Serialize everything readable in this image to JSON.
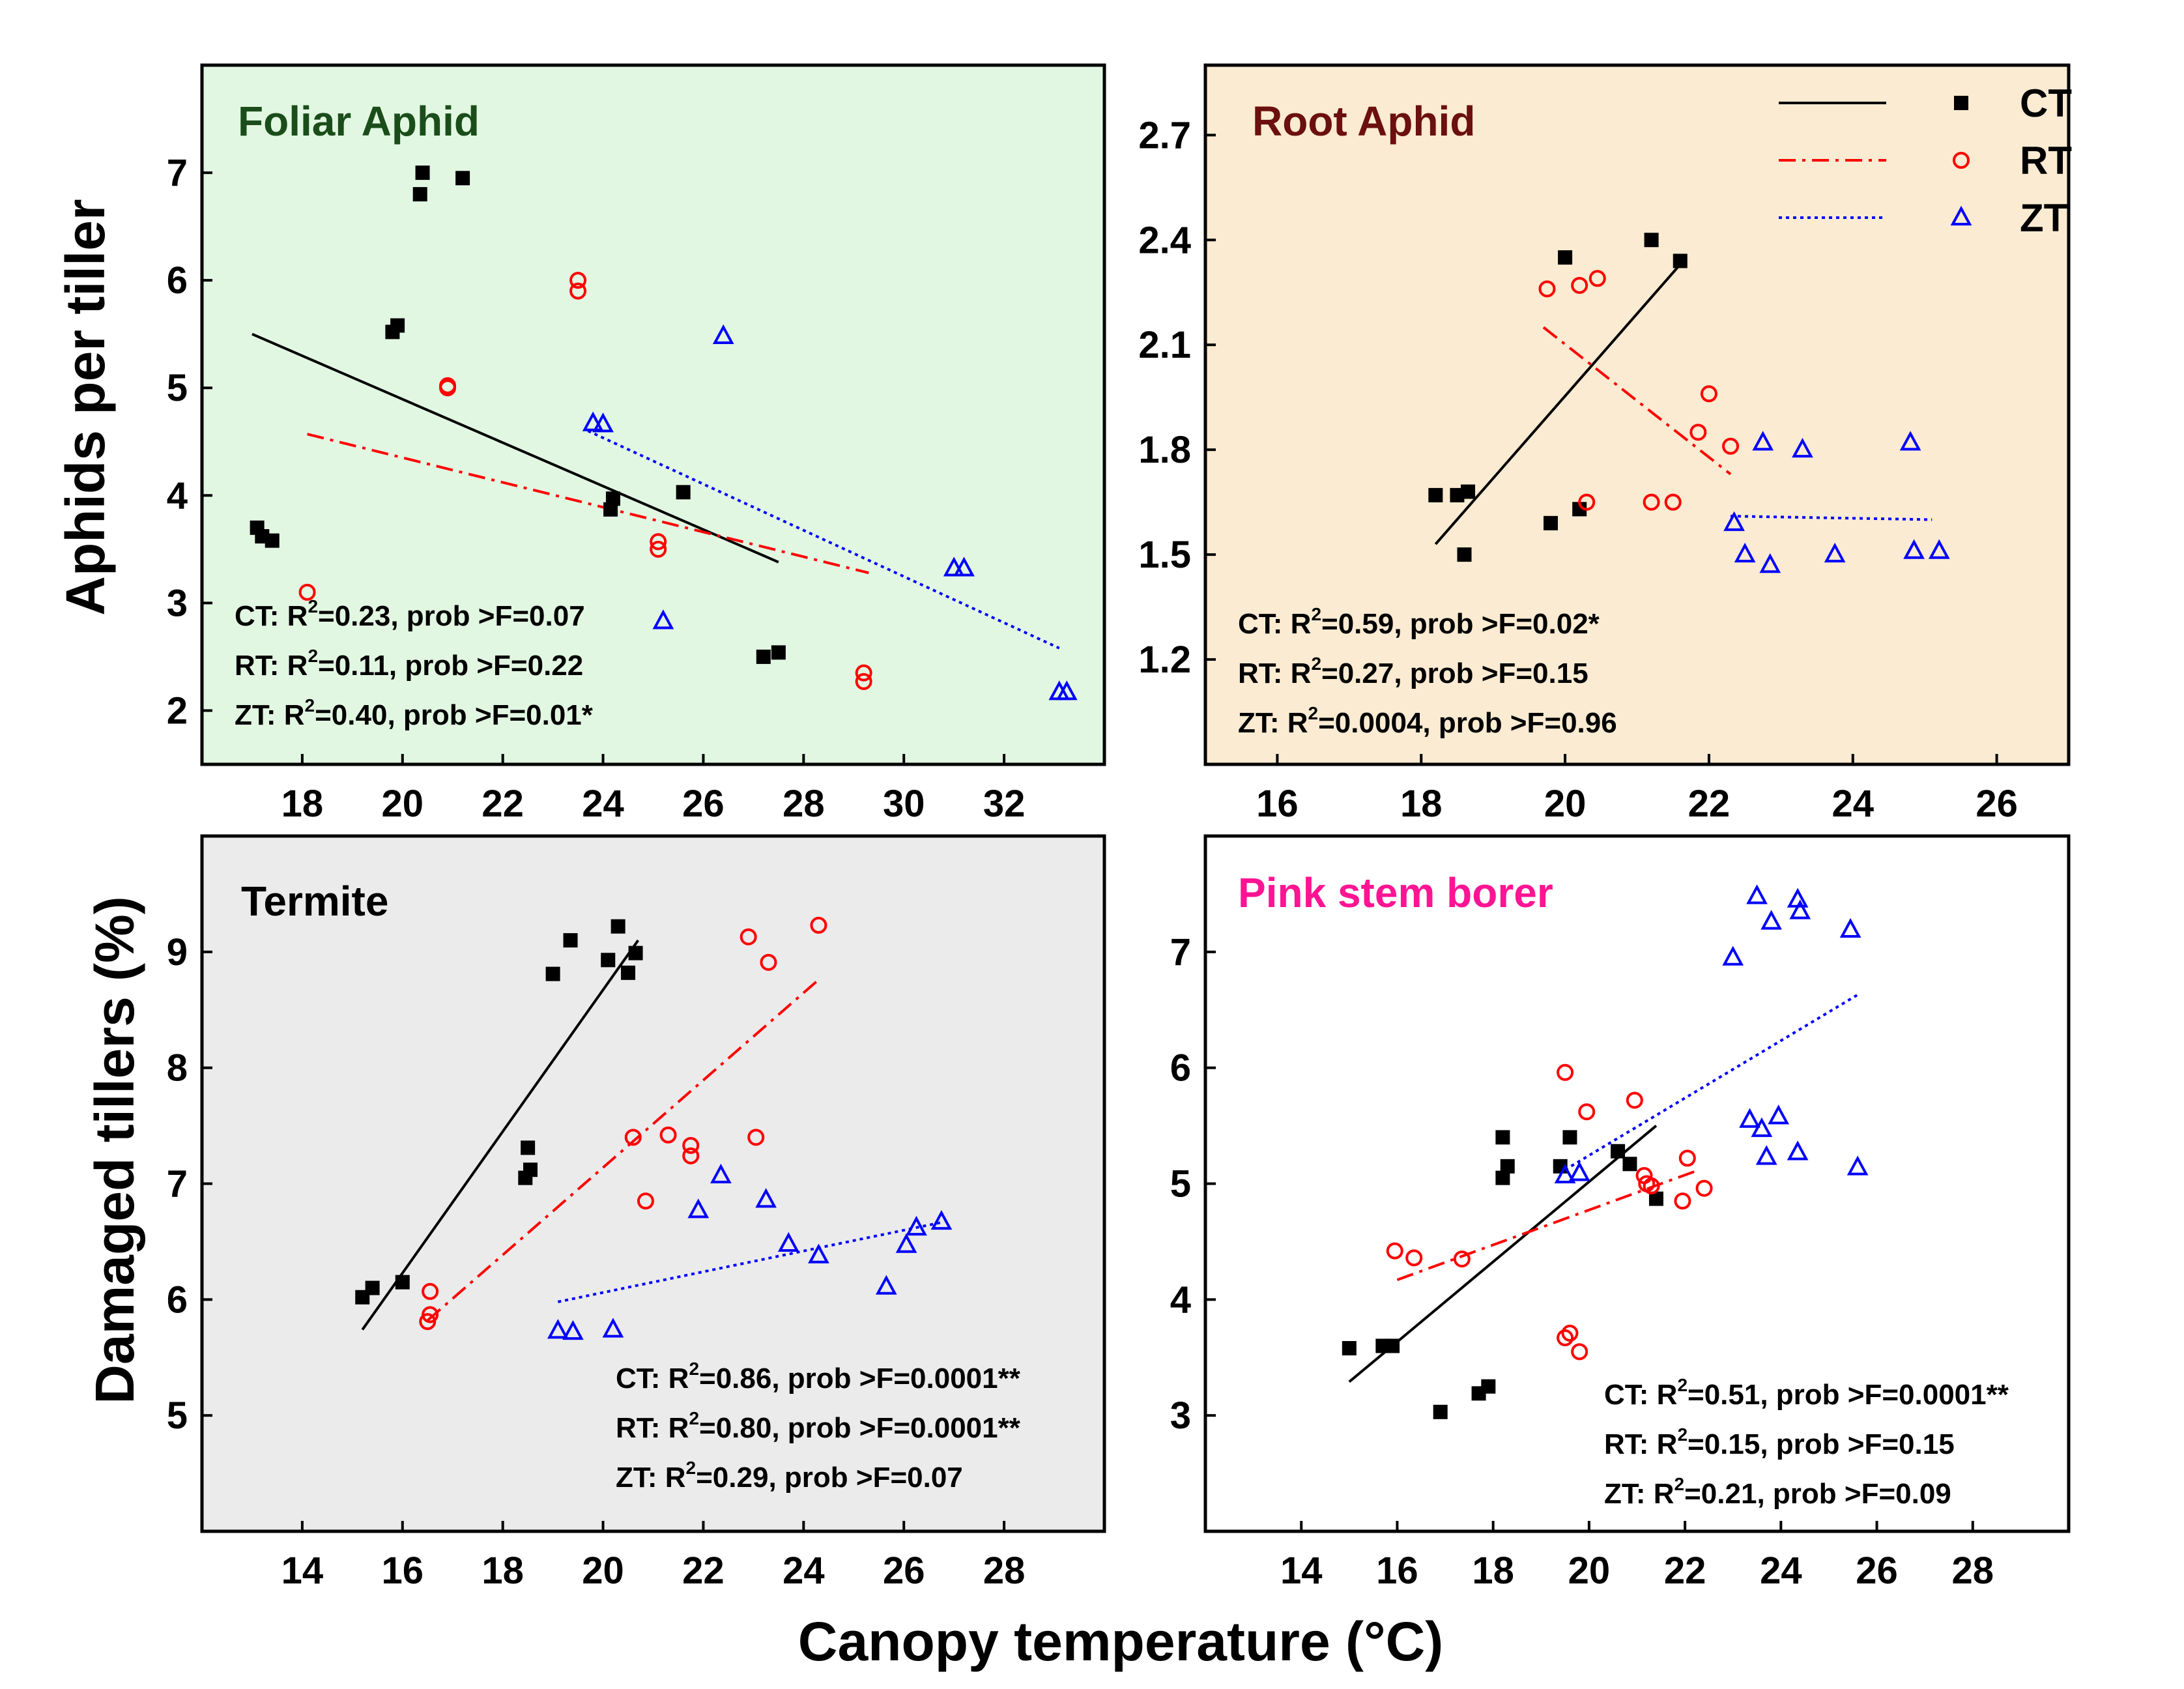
{
  "figure": {
    "x_axis_label": "Canopy temperature (°C)",
    "top_y_axis_label": "Aphids per tiller",
    "bottom_y_axis_label": "Damaged tillers (%)",
    "legend": [
      {
        "name": "CT",
        "color": "#000000",
        "line": "solid",
        "marker": "square"
      },
      {
        "name": "RT",
        "color": "#ff0000",
        "line": "dash-dot",
        "marker": "circle"
      },
      {
        "name": "ZT",
        "color": "#0000ff",
        "line": "dotted",
        "marker": "triangle"
      }
    ]
  },
  "chart_data": [
    {
      "type": "scatter",
      "title": "Foliar Aphid",
      "title_color": "#1a4d1a",
      "background": "#e2f7e2",
      "xlabel": "Canopy temperature (°C)",
      "ylabel": "Aphids per tiller",
      "xlim": [
        16,
        34
      ],
      "ylim": [
        1.5,
        8.0
      ],
      "xticks": [
        18,
        20,
        22,
        24,
        26,
        28,
        30,
        32
      ],
      "yticks": [
        2,
        3,
        4,
        5,
        6,
        7
      ],
      "stats": [
        {
          "name": "CT",
          "pre": "CT: R",
          "sup": "2",
          "post": "=0.23, prob >F=0.07"
        },
        {
          "name": "RT",
          "pre": "RT: R",
          "sup": "2",
          "post": "=0.11, prob >F=0.22"
        },
        {
          "name": "ZT",
          "pre": "ZT: R",
          "sup": "2",
          "post": "=0.40, prob >F=0.01*"
        }
      ],
      "series": [
        {
          "name": "CT",
          "marker": "square",
          "points": [
            [
              17.1,
              3.7
            ],
            [
              17.2,
              3.62
            ],
            [
              17.4,
              3.58
            ],
            [
              19.8,
              5.52
            ],
            [
              19.9,
              5.58
            ],
            [
              20.4,
              7.0
            ],
            [
              20.35,
              6.8
            ],
            [
              21.2,
              6.95
            ],
            [
              24.2,
              3.97
            ],
            [
              24.15,
              3.87
            ],
            [
              25.6,
              4.03
            ],
            [
              27.2,
              2.5
            ],
            [
              27.5,
              2.54
            ]
          ],
          "fit": [
            [
              17.0,
              5.5
            ],
            [
              27.5,
              3.38
            ]
          ]
        },
        {
          "name": "RT",
          "marker": "circle",
          "points": [
            [
              18.1,
              3.1
            ],
            [
              20.9,
              5.02
            ],
            [
              20.9,
              5.0
            ],
            [
              23.5,
              6.0
            ],
            [
              23.5,
              5.9
            ],
            [
              25.1,
              3.57
            ],
            [
              25.1,
              3.5
            ],
            [
              29.2,
              2.35
            ],
            [
              29.2,
              2.27
            ]
          ],
          "fit": [
            [
              18.1,
              4.57
            ],
            [
              29.3,
              3.28
            ]
          ]
        },
        {
          "name": "ZT",
          "marker": "triangle",
          "points": [
            [
              23.8,
              4.67
            ],
            [
              24.0,
              4.66
            ],
            [
              25.2,
              2.83
            ],
            [
              26.4,
              5.48
            ],
            [
              31.0,
              3.32
            ],
            [
              31.2,
              3.32
            ],
            [
              33.1,
              2.17
            ],
            [
              33.25,
              2.17
            ]
          ],
          "fit": [
            [
              23.7,
              4.6
            ],
            [
              33.1,
              2.58
            ]
          ]
        }
      ]
    },
    {
      "type": "scatter",
      "title": "Root Aphid",
      "title_color": "#6b0f0f",
      "background": "#faebd2",
      "xlabel": "Canopy temperature (°C)",
      "ylabel": "Aphids per tiller",
      "xlim": [
        15,
        27
      ],
      "ylim": [
        0.9,
        2.9
      ],
      "xticks": [
        16,
        18,
        20,
        22,
        24,
        26
      ],
      "yticks": [
        1.2,
        1.5,
        1.8,
        2.1,
        2.4,
        2.7
      ],
      "stats": [
        {
          "name": "CT",
          "pre": "CT: R",
          "sup": "2",
          "post": "=0.59, prob >F=0.02*"
        },
        {
          "name": "RT",
          "pre": "RT: R",
          "sup": "2",
          "post": "=0.27, prob >F=0.15"
        },
        {
          "name": "ZT",
          "pre": "ZT: R",
          "sup": "2",
          "post": "=0.0004, prob >F=0.96"
        }
      ],
      "series": [
        {
          "name": "CT",
          "marker": "square",
          "points": [
            [
              18.2,
              1.67
            ],
            [
              18.5,
              1.67
            ],
            [
              18.65,
              1.68
            ],
            [
              18.6,
              1.5
            ],
            [
              19.8,
              1.59
            ],
            [
              20.2,
              1.63
            ],
            [
              20.0,
              2.35
            ],
            [
              21.2,
              2.4
            ],
            [
              21.6,
              2.34
            ]
          ],
          "fit": [
            [
              18.2,
              1.53
            ],
            [
              21.6,
              2.33
            ]
          ]
        },
        {
          "name": "RT",
          "marker": "circle",
          "points": [
            [
              19.75,
              2.26
            ],
            [
              20.2,
              2.27
            ],
            [
              20.45,
              2.29
            ],
            [
              20.3,
              1.65
            ],
            [
              21.2,
              1.65
            ],
            [
              21.5,
              1.65
            ],
            [
              21.85,
              1.85
            ],
            [
              22.0,
              1.96
            ],
            [
              22.3,
              1.81
            ]
          ],
          "fit": [
            [
              19.7,
              2.15
            ],
            [
              22.3,
              1.73
            ]
          ]
        },
        {
          "name": "ZT",
          "marker": "triangle",
          "points": [
            [
              22.35,
              1.59
            ],
            [
              22.5,
              1.5
            ],
            [
              22.75,
              1.82
            ],
            [
              22.85,
              1.47
            ],
            [
              23.3,
              1.8
            ],
            [
              23.75,
              1.5
            ],
            [
              24.8,
              1.82
            ],
            [
              24.85,
              1.51
            ],
            [
              25.2,
              1.51
            ]
          ],
          "fit": [
            [
              22.3,
              1.61
            ],
            [
              25.1,
              1.6
            ]
          ]
        }
      ]
    },
    {
      "type": "scatter",
      "title": "Termite",
      "title_color": "#000000",
      "background": "#ebebeb",
      "xlabel": "Canopy temperature (°C)",
      "ylabel": "Damaged tillers (%)",
      "xlim": [
        12,
        30
      ],
      "ylim": [
        4.0,
        10.0
      ],
      "xticks": [
        14,
        16,
        18,
        20,
        22,
        24,
        26,
        28
      ],
      "yticks": [
        5,
        6,
        7,
        8,
        9
      ],
      "stats": [
        {
          "name": "CT",
          "pre": "CT: R",
          "sup": "2",
          "post": "=0.86, prob >F=0.0001**"
        },
        {
          "name": "RT",
          "pre": "RT: R",
          "sup": "2",
          "post": "=0.80, prob >F=0.0001**"
        },
        {
          "name": "ZT",
          "pre": "ZT: R",
          "sup": "2",
          "post": "=0.29, prob >F=0.07"
        }
      ],
      "series": [
        {
          "name": "CT",
          "marker": "square",
          "points": [
            [
              15.2,
              6.02
            ],
            [
              15.4,
              6.1
            ],
            [
              16.0,
              6.15
            ],
            [
              18.5,
              7.31
            ],
            [
              18.45,
              7.05
            ],
            [
              18.55,
              7.12
            ],
            [
              19.0,
              8.81
            ],
            [
              19.35,
              9.1
            ],
            [
              20.1,
              8.93
            ],
            [
              20.3,
              9.22
            ],
            [
              20.5,
              8.82
            ],
            [
              20.65,
              8.99
            ]
          ],
          "fit": [
            [
              15.2,
              5.74
            ],
            [
              20.7,
              9.1
            ]
          ]
        },
        {
          "name": "RT",
          "marker": "circle",
          "points": [
            [
              16.55,
              6.07
            ],
            [
              16.55,
              5.87
            ],
            [
              16.5,
              5.81
            ],
            [
              20.6,
              7.4
            ],
            [
              20.85,
              6.85
            ],
            [
              21.3,
              7.42
            ],
            [
              21.75,
              7.33
            ],
            [
              21.75,
              7.24
            ],
            [
              22.9,
              9.13
            ],
            [
              23.05,
              7.4
            ],
            [
              23.3,
              8.91
            ],
            [
              24.3,
              9.23
            ]
          ],
          "fit": [
            [
              16.5,
              5.82
            ],
            [
              24.3,
              8.76
            ]
          ]
        },
        {
          "name": "ZT",
          "marker": "triangle",
          "points": [
            [
              19.1,
              5.73
            ],
            [
              19.4,
              5.72
            ],
            [
              20.2,
              5.74
            ],
            [
              21.9,
              6.77
            ],
            [
              22.35,
              7.07
            ],
            [
              23.25,
              6.86
            ],
            [
              23.7,
              6.48
            ],
            [
              24.3,
              6.38
            ],
            [
              25.65,
              6.11
            ],
            [
              26.05,
              6.47
            ],
            [
              26.25,
              6.62
            ],
            [
              26.75,
              6.67
            ]
          ],
          "fit": [
            [
              19.1,
              5.98
            ],
            [
              26.8,
              6.67
            ]
          ]
        }
      ]
    },
    {
      "type": "scatter",
      "title": "Pink stem borer",
      "title_color": "#ff1493",
      "background": "#ffffff",
      "xlabel": "Canopy temperature (°C)",
      "ylabel": "Damaged tillers (%)",
      "xlim": [
        12,
        30
      ],
      "ylim": [
        2.0,
        8.0
      ],
      "xticks": [
        14,
        16,
        18,
        20,
        22,
        24,
        26,
        28
      ],
      "yticks": [
        3,
        4,
        5,
        6,
        7
      ],
      "stats": [
        {
          "name": "CT",
          "pre": "CT: R",
          "sup": "2",
          "post": "=0.51, prob >F=0.0001**"
        },
        {
          "name": "RT",
          "pre": "RT: R",
          "sup": "2",
          "post": "=0.15, prob >F=0.15"
        },
        {
          "name": "ZT",
          "pre": "ZT: R",
          "sup": "2",
          "post": "=0.21, prob >F=0.09"
        }
      ],
      "series": [
        {
          "name": "CT",
          "marker": "square",
          "points": [
            [
              15.0,
              3.58
            ],
            [
              15.7,
              3.6
            ],
            [
              15.9,
              3.6
            ],
            [
              16.9,
              3.03
            ],
            [
              17.7,
              3.19
            ],
            [
              17.9,
              3.25
            ],
            [
              18.2,
              5.4
            ],
            [
              18.2,
              5.05
            ],
            [
              18.3,
              5.15
            ],
            [
              19.4,
              5.15
            ],
            [
              19.6,
              5.4
            ],
            [
              20.6,
              5.28
            ],
            [
              20.85,
              5.17
            ],
            [
              21.4,
              4.87
            ]
          ],
          "fit": [
            [
              15.0,
              3.29
            ],
            [
              21.4,
              5.5
            ]
          ]
        },
        {
          "name": "RT",
          "marker": "circle",
          "points": [
            [
              15.95,
              4.42
            ],
            [
              16.35,
              4.36
            ],
            [
              17.35,
              4.35
            ],
            [
              19.5,
              5.96
            ],
            [
              19.5,
              3.67
            ],
            [
              19.6,
              3.71
            ],
            [
              19.8,
              3.55
            ],
            [
              19.95,
              5.62
            ],
            [
              20.95,
              5.72
            ],
            [
              21.15,
              5.07
            ],
            [
              21.2,
              5.0
            ],
            [
              21.3,
              4.98
            ],
            [
              21.95,
              4.85
            ],
            [
              22.05,
              5.22
            ],
            [
              22.4,
              4.96
            ]
          ],
          "fit": [
            [
              16.0,
              4.17
            ],
            [
              22.3,
              5.12
            ]
          ]
        },
        {
          "name": "ZT",
          "marker": "triangle",
          "points": [
            [
              19.5,
              5.07
            ],
            [
              19.8,
              5.09
            ],
            [
              23.0,
              6.95
            ],
            [
              23.35,
              5.55
            ],
            [
              23.5,
              7.48
            ],
            [
              23.6,
              5.47
            ],
            [
              23.7,
              5.23
            ],
            [
              23.8,
              7.26
            ],
            [
              23.95,
              5.58
            ],
            [
              24.35,
              7.45
            ],
            [
              24.4,
              7.35
            ],
            [
              24.35,
              5.27
            ],
            [
              25.45,
              7.19
            ],
            [
              25.6,
              5.14
            ]
          ],
          "fit": [
            [
              19.5,
              5.12
            ],
            [
              25.6,
              6.63
            ]
          ]
        }
      ]
    }
  ]
}
